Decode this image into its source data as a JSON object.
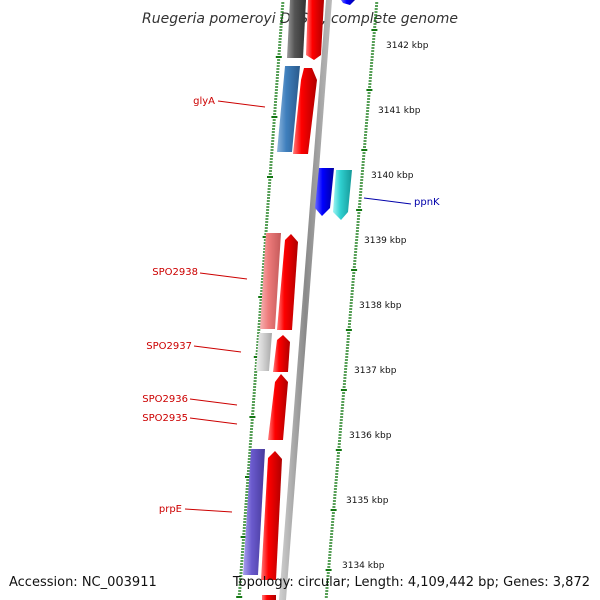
{
  "title": "Ruegeria pomeroyi DSS-3, complete genome",
  "footer": {
    "accession": "Accession: NC_003911",
    "summary": "Topology: circular; Length: 4,109,442 bp; Genes: 3,872"
  },
  "ruler_labels": [
    "3142 kbp",
    "3141 kbp",
    "3140 kbp",
    "3139 kbp",
    "3138 kbp",
    "3137 kbp",
    "3136 kbp",
    "3135 kbp",
    "3134 kbp"
  ],
  "gene_labels": [
    {
      "name": "glyA",
      "color": "#cc0000"
    },
    {
      "name": "ppnK",
      "color": "#0000aa"
    },
    {
      "name": "SPO2938",
      "color": "#cc0000"
    },
    {
      "name": "SPO2937",
      "color": "#cc0000"
    },
    {
      "name": "SPO2936",
      "color": "#cc0000"
    },
    {
      "name": "SPO2935",
      "color": "#cc0000"
    },
    {
      "name": "prpE",
      "color": "#cc0000"
    }
  ],
  "colors": {
    "forward_cds": "#ff0000",
    "reverse_cds": "#0000ff",
    "backbone": "#888888",
    "gc_ticks": "#117711"
  }
}
